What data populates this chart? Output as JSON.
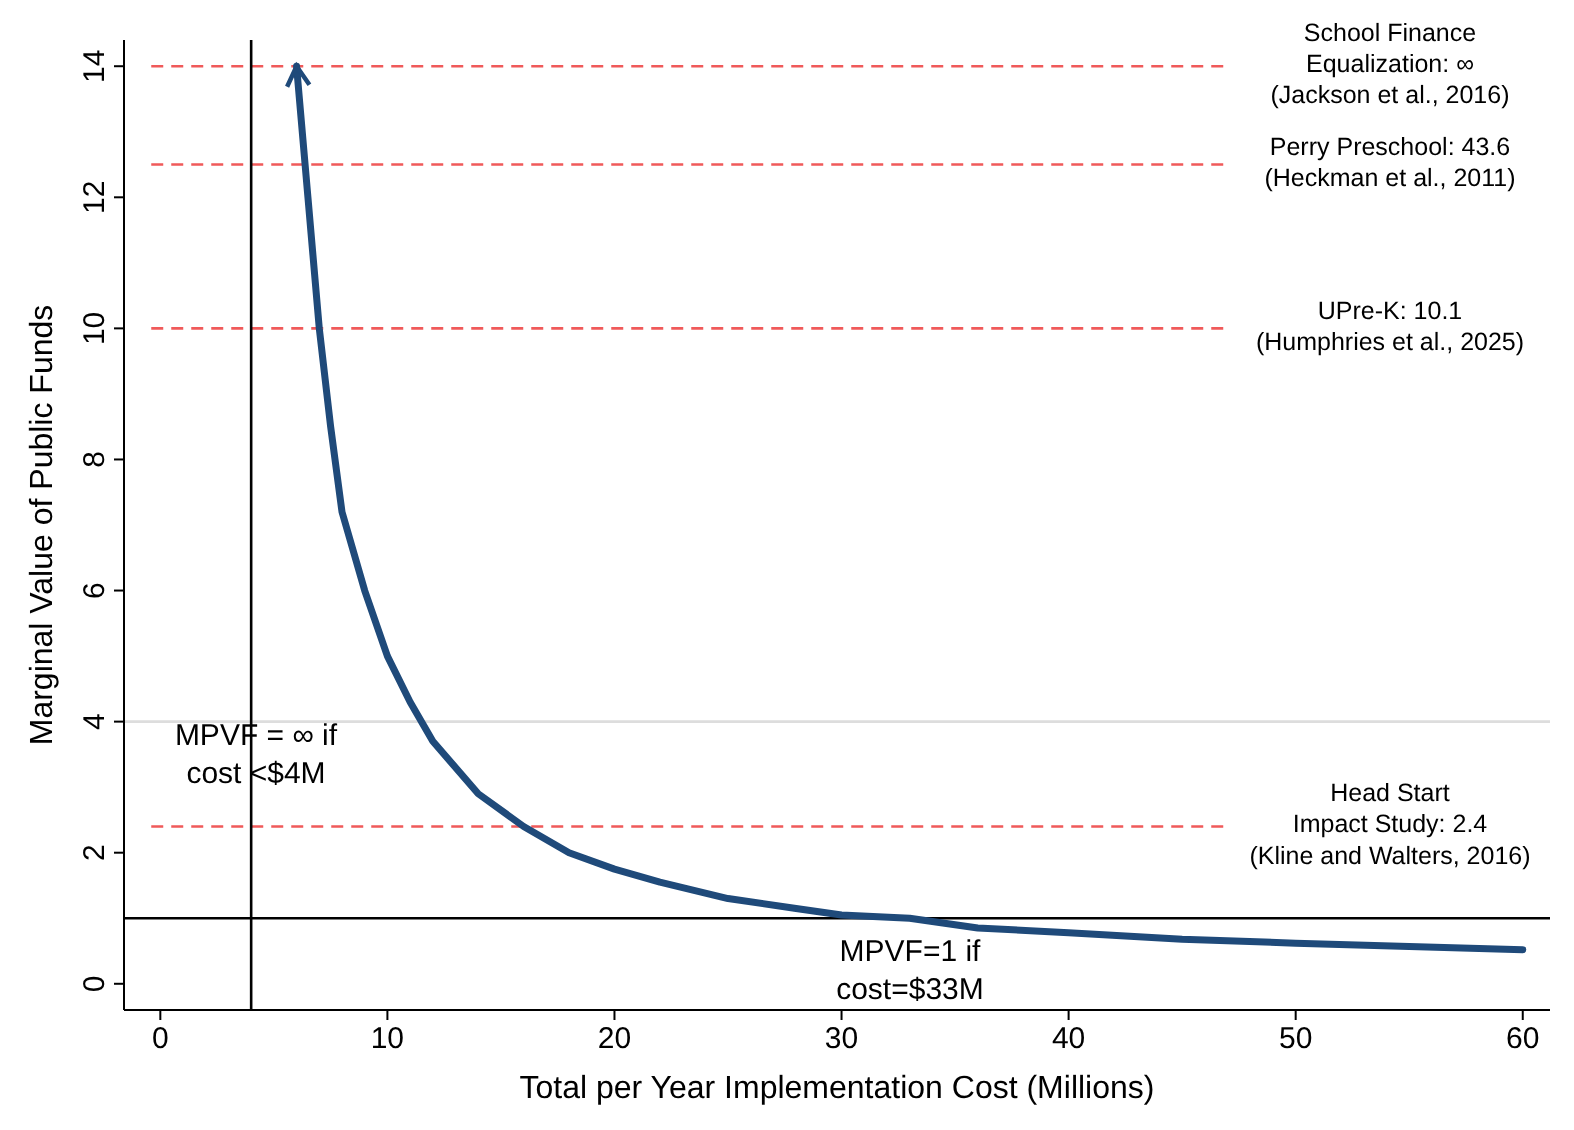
{
  "chart_data": {
    "type": "line",
    "xlabel": "Total per Year Implementation Cost (Millions)",
    "ylabel": "Marginal Value of Public Funds",
    "xlim": [
      -1.6,
      61.2
    ],
    "ylim": [
      -0.4,
      14.4
    ],
    "xticks": [
      0,
      10,
      20,
      30,
      40,
      50,
      60
    ],
    "yticks": [
      0,
      2,
      4,
      6,
      8,
      10,
      12,
      14
    ],
    "grid": false,
    "line_style": "solid",
    "marker": "none",
    "series": [
      {
        "color": "#1f4a7a",
        "x": [
          6,
          6.5,
          7,
          7.5,
          8,
          9,
          10,
          11,
          12,
          14,
          16,
          18,
          20,
          22,
          25,
          28,
          30,
          33,
          36,
          40,
          45,
          50,
          55,
          60
        ],
        "values": [
          14,
          12,
          10,
          8.5,
          7.2,
          6,
          5,
          4.3,
          3.7,
          2.9,
          2.4,
          2,
          1.75,
          1.55,
          1.3,
          1.15,
          1.05,
          1,
          0.85,
          0.78,
          0.68,
          0.62,
          0.57,
          0.52
        ]
      }
    ],
    "ref_lines": [
      {
        "axis": "y",
        "value": 14,
        "color": "#f05a5a",
        "line_style": "dashed"
      },
      {
        "axis": "y",
        "value": 12.5,
        "color": "#f05a5a",
        "line_style": "dashed"
      },
      {
        "axis": "y",
        "value": 10,
        "color": "#f05a5a",
        "line_style": "dashed"
      },
      {
        "axis": "y",
        "value": 2.4,
        "color": "#f05a5a",
        "line_style": "dashed"
      },
      {
        "axis": "y",
        "value": 4,
        "color": "#dddddd",
        "line_style": "solid"
      },
      {
        "axis": "y",
        "value": 1,
        "color": "#000000",
        "line_style": "solid"
      },
      {
        "axis": "x",
        "value": 4,
        "color": "#000000",
        "line_style": "solid"
      }
    ],
    "annotations": [
      "School Finance\nEqualization: ∞\n(Jackson et al., 2016)",
      "Perry Preschool: 43.6\n(Heckman et al., 2011)",
      "UPre-K: 10.1\n(Humphries et al., 2025)",
      "Head Start\nImpact Study: 2.4\n(Kline and Walters, 2016)",
      "MPVF = ∞ if\ncost <$4M",
      "MPVF=1 if\ncost=$33M"
    ]
  }
}
